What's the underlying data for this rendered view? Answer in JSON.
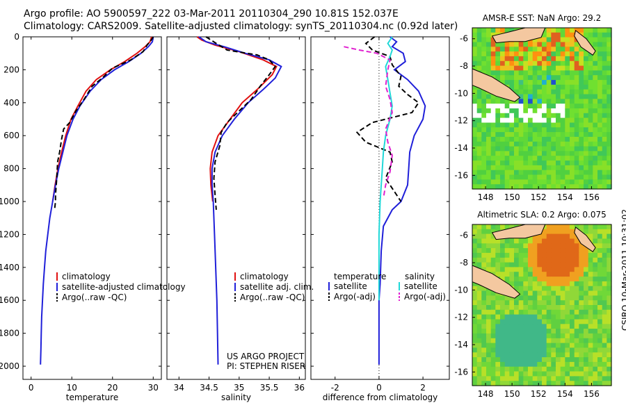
{
  "header": {
    "line1": "Argo profile: AO 5900597_222 03-Mar-2011 20110304_290 10.81S 152.037E",
    "line2": "Climatology: CARS2009. Satellite-adjusted climatology: synTS_20110304.nc (0.92d later)"
  },
  "credits": {
    "project": "US ARGO PROJECT",
    "pi": "PI: STEPHEN RISER",
    "stamp": "CSIRO 10-Mar-2011 10:31:02"
  },
  "colors": {
    "climatology": "#e01010",
    "satellite": "#1f1fd9",
    "argo": "#000000",
    "sat_salinity": "#20d8d8",
    "argo_salinity": "#e020d0",
    "land": "#f4c8a0",
    "sea_green": "#60d040"
  },
  "chart_data": [
    {
      "type": "line",
      "xlabel": "temperature",
      "ylabel": "",
      "xlim": [
        -2,
        32
      ],
      "ylim": [
        2080,
        0
      ],
      "xticks": [
        "0",
        "10",
        "20",
        "30"
      ],
      "xtick_values": [
        0,
        10,
        20,
        30
      ],
      "yticks": [
        "0",
        "200",
        "400",
        "600",
        "800",
        "1000",
        "1200",
        "1400",
        "1600",
        "1800",
        "2000"
      ],
      "ytick_values": [
        0,
        200,
        400,
        600,
        800,
        1000,
        1200,
        1400,
        1600,
        1800,
        2000
      ],
      "legend": [
        "climatology",
        "satellite-adjusted climatology",
        "Argo(..raw -QC)"
      ],
      "series": [
        {
          "name": "climatology",
          "color": "#e01010",
          "dash": false,
          "points": [
            [
              29.6,
              0
            ],
            [
              29.2,
              30
            ],
            [
              28,
              60
            ],
            [
              26,
              100
            ],
            [
              23,
              150
            ],
            [
              19.5,
              200
            ],
            [
              16,
              260
            ],
            [
              13.5,
              330
            ],
            [
              11.5,
              420
            ],
            [
              9.8,
              500
            ],
            [
              8.5,
              600
            ],
            [
              7.5,
              700
            ],
            [
              6.6,
              800
            ],
            [
              5.9,
              900
            ],
            [
              5.3,
              1000
            ]
          ]
        },
        {
          "name": "satellite-adjusted climatology",
          "color": "#1f1fd9",
          "dash": false,
          "points": [
            [
              30,
              0
            ],
            [
              29.8,
              30
            ],
            [
              28.8,
              60
            ],
            [
              27,
              100
            ],
            [
              24,
              150
            ],
            [
              20.5,
              200
            ],
            [
              17.2,
              260
            ],
            [
              14.5,
              330
            ],
            [
              12,
              420
            ],
            [
              10.3,
              500
            ],
            [
              8.8,
              600
            ],
            [
              7.8,
              700
            ],
            [
              6.8,
              800
            ],
            [
              6,
              900
            ],
            [
              5.3,
              1000
            ],
            [
              4.6,
              1100
            ],
            [
              4.1,
              1200
            ],
            [
              3.6,
              1300
            ],
            [
              3.3,
              1400
            ],
            [
              3,
              1500
            ],
            [
              2.8,
              1600
            ],
            [
              2.6,
              1700
            ],
            [
              2.5,
              1800
            ],
            [
              2.4,
              1900
            ],
            [
              2.3,
              1990
            ]
          ]
        },
        {
          "name": "Argo(..raw -QC)",
          "color": "#000000",
          "dash": true,
          "points": [
            [
              30,
              0
            ],
            [
              29.5,
              20
            ],
            [
              28.5,
              50
            ],
            [
              27.5,
              90
            ],
            [
              24.5,
              140
            ],
            [
              20,
              190
            ],
            [
              17.5,
              250
            ],
            [
              15,
              300
            ],
            [
              13,
              380
            ],
            [
              11,
              450
            ],
            [
              9.5,
              520
            ],
            [
              8,
              560
            ],
            [
              7.5,
              620
            ],
            [
              7,
              700
            ],
            [
              6.5,
              760
            ],
            [
              6.3,
              860
            ],
            [
              6,
              960
            ],
            [
              6,
              1000
            ],
            [
              5.8,
              1040
            ]
          ]
        }
      ]
    },
    {
      "type": "line",
      "xlabel": "salinity",
      "xlim": [
        33.8,
        36.1
      ],
      "ylim": [
        2080,
        0
      ],
      "xticks": [
        "34",
        "34.5",
        "35",
        "35.5",
        "36"
      ],
      "xtick_values": [
        34,
        34.5,
        35,
        35.5,
        36
      ],
      "legend": [
        "climatology",
        "satellite adj. clim.",
        "Argo(..raw -QC)"
      ],
      "series": [
        {
          "name": "climatology",
          "color": "#e01010",
          "dash": false,
          "points": [
            [
              34.3,
              0
            ],
            [
              34.38,
              20
            ],
            [
              34.6,
              50
            ],
            [
              35,
              90
            ],
            [
              35.4,
              140
            ],
            [
              35.62,
              180
            ],
            [
              35.55,
              230
            ],
            [
              35.3,
              320
            ],
            [
              35.05,
              400
            ],
            [
              34.85,
              500
            ],
            [
              34.65,
              600
            ],
            [
              34.55,
              700
            ],
            [
              34.52,
              800
            ],
            [
              34.53,
              900
            ],
            [
              34.56,
              1000
            ]
          ]
        },
        {
          "name": "satellite adj. clim.",
          "color": "#1f1fd9",
          "dash": false,
          "points": [
            [
              34.33,
              0
            ],
            [
              34.45,
              30
            ],
            [
              34.75,
              60
            ],
            [
              35.1,
              100
            ],
            [
              35.5,
              140
            ],
            [
              35.7,
              180
            ],
            [
              35.6,
              250
            ],
            [
              35.4,
              320
            ],
            [
              35.15,
              400
            ],
            [
              34.92,
              500
            ],
            [
              34.72,
              600
            ],
            [
              34.6,
              700
            ],
            [
              34.55,
              800
            ],
            [
              34.55,
              900
            ],
            [
              34.57,
              1000
            ],
            [
              34.59,
              1200
            ],
            [
              34.61,
              1400
            ],
            [
              34.63,
              1600
            ],
            [
              34.64,
              1800
            ],
            [
              34.65,
              1990
            ]
          ]
        },
        {
          "name": "Argo(..raw -QC)",
          "color": "#000000",
          "dash": true,
          "points": [
            [
              34.45,
              0
            ],
            [
              34.62,
              40
            ],
            [
              34.8,
              80
            ],
            [
              35.3,
              110
            ],
            [
              35.5,
              140
            ],
            [
              35.6,
              180
            ],
            [
              35.5,
              230
            ],
            [
              35.35,
              300
            ],
            [
              35.2,
              380
            ],
            [
              35,
              450
            ],
            [
              34.8,
              520
            ],
            [
              34.7,
              580
            ],
            [
              34.68,
              660
            ],
            [
              34.6,
              760
            ],
            [
              34.58,
              860
            ],
            [
              34.6,
              960
            ],
            [
              34.62,
              1050
            ]
          ]
        }
      ]
    },
    {
      "type": "line",
      "xlabel": "difference from climatology",
      "xlim": [
        -3.1,
        3.2
      ],
      "ylim": [
        2080,
        0
      ],
      "xticks": [
        "-2",
        "0",
        "2"
      ],
      "xtick_values": [
        -2,
        0,
        2
      ],
      "legend_left_title": "temperature",
      "legend_right_title": "salinity",
      "legend_left": [
        "satellite",
        "Argo(-adj)"
      ],
      "legend_right": [
        "satellite",
        "Argo(-adj)"
      ],
      "series": [
        {
          "name": "temperature satellite",
          "color": "#1f1fd9",
          "dash": false,
          "points": [
            [
              0.5,
              0
            ],
            [
              0.8,
              30
            ],
            [
              0.6,
              60
            ],
            [
              1.1,
              100
            ],
            [
              1.2,
              150
            ],
            [
              0.7,
              200
            ],
            [
              1.3,
              260
            ],
            [
              1.8,
              330
            ],
            [
              2.1,
              420
            ],
            [
              2,
              500
            ],
            [
              1.6,
              600
            ],
            [
              1.4,
              700
            ],
            [
              1.35,
              800
            ],
            [
              1.3,
              900
            ],
            [
              1,
              1000
            ],
            [
              0.6,
              1050
            ],
            [
              0.2,
              1150
            ],
            [
              0.1,
              1300
            ],
            [
              0.05,
              1500
            ],
            [
              0,
              1600
            ],
            [
              0,
              1800
            ],
            [
              0,
              1990
            ]
          ]
        },
        {
          "name": "temperature Argo(-adj)",
          "color": "#000000",
          "dash": true,
          "points": [
            [
              -0.2,
              0
            ],
            [
              -0.6,
              40
            ],
            [
              -0.3,
              80
            ],
            [
              0.5,
              120
            ],
            [
              0.6,
              170
            ],
            [
              1,
              240
            ],
            [
              0.9,
              300
            ],
            [
              1.3,
              350
            ],
            [
              1.8,
              400
            ],
            [
              1.5,
              460
            ],
            [
              -0.3,
              520
            ],
            [
              -1,
              580
            ],
            [
              -0.6,
              640
            ],
            [
              0.5,
              700
            ],
            [
              0.6,
              760
            ],
            [
              0.3,
              860
            ],
            [
              0.8,
              960
            ],
            [
              1,
              1000
            ]
          ]
        },
        {
          "name": "salinity satellite",
          "color": "#20d8d8",
          "dash": false,
          "points": [
            [
              0.6,
              0
            ],
            [
              0.4,
              40
            ],
            [
              0.6,
              80
            ],
            [
              0.5,
              120
            ],
            [
              0.3,
              180
            ],
            [
              0.4,
              260
            ],
            [
              0.5,
              340
            ],
            [
              0.6,
              420
            ],
            [
              0.5,
              500
            ],
            [
              0.3,
              600
            ],
            [
              0.2,
              700
            ],
            [
              0.15,
              800
            ],
            [
              0.1,
              900
            ],
            [
              0.05,
              1000
            ],
            [
              0,
              1200
            ],
            [
              0,
              1400
            ],
            [
              0,
              1600
            ]
          ]
        },
        {
          "name": "salinity Argo(-adj)",
          "color": "#e020d0",
          "dash": true,
          "points": [
            [
              -1.6,
              60
            ],
            [
              -0.9,
              80
            ],
            [
              -0.1,
              100
            ],
            [
              0.5,
              140
            ],
            [
              0.4,
              200
            ],
            [
              0.3,
              300
            ],
            [
              0.5,
              380
            ],
            [
              0.6,
              460
            ],
            [
              0.3,
              560
            ],
            [
              0.4,
              640
            ],
            [
              0.6,
              720
            ],
            [
              0.5,
              820
            ],
            [
              0.3,
              900
            ],
            [
              0.2,
              980
            ]
          ]
        }
      ]
    },
    {
      "type": "heatmap",
      "title": "AMSR-E SST: NaN Argo: 29.2",
      "xlim": [
        147,
        157.5
      ],
      "ylim": [
        -17,
        -5.2
      ],
      "xticks": [
        "148",
        "150",
        "152",
        "154",
        "156"
      ],
      "xtick_values": [
        148,
        150,
        152,
        154,
        156
      ],
      "yticks": [
        "-6",
        "-8",
        "-10",
        "-12",
        "-14",
        "-16"
      ],
      "ytick_values": [
        -6,
        -8,
        -10,
        -12,
        -14,
        -16
      ]
    },
    {
      "type": "heatmap",
      "title": "Altimetric SLA: 0.2 Argo: 0.075",
      "xlim": [
        147,
        157.5
      ],
      "ylim": [
        -17,
        -5.2
      ],
      "xticks": [
        "148",
        "150",
        "152",
        "154",
        "156"
      ],
      "xtick_values": [
        148,
        150,
        152,
        154,
        156
      ],
      "yticks": [
        "-6",
        "-8",
        "-10",
        "-12",
        "-14",
        "-16"
      ],
      "ytick_values": [
        -6,
        -8,
        -10,
        -12,
        -14,
        -16
      ]
    }
  ]
}
